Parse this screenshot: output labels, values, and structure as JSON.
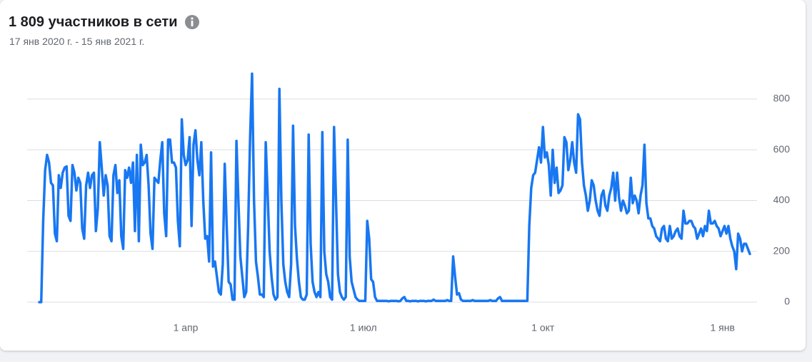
{
  "chart_data": {
    "type": "line",
    "title": "1 809 участников в сети",
    "subtitle": "17 янв 2020 г. - 15 янв 2021 г.",
    "categories": [
      null,
      null,
      null,
      null,
      null,
      null,
      null,
      null,
      null,
      null,
      null,
      null,
      null,
      null,
      null,
      null,
      null,
      null,
      null,
      null,
      null,
      null,
      null,
      null,
      null,
      null,
      null,
      null,
      null,
      null,
      null,
      null,
      null,
      null,
      null,
      null,
      null,
      null,
      null,
      null,
      null,
      null,
      null,
      null,
      null,
      null,
      null,
      null,
      null,
      null,
      null,
      null,
      null,
      null,
      null,
      null,
      null,
      null,
      null,
      null,
      null,
      null,
      null,
      null,
      null,
      null,
      null,
      null,
      null,
      null,
      null,
      null,
      null,
      null,
      null,
      "1 апр",
      null,
      null,
      null,
      null,
      null,
      null,
      null,
      null,
      null,
      null,
      null,
      null,
      null,
      null,
      null,
      null,
      null,
      null,
      null,
      null,
      null,
      null,
      null,
      null,
      null,
      null,
      null,
      null,
      null,
      null,
      null,
      null,
      null,
      null,
      null,
      null,
      null,
      null,
      null,
      null,
      null,
      null,
      null,
      null,
      null,
      null,
      null,
      null,
      null,
      null,
      null,
      null,
      null,
      null,
      null,
      null,
      null,
      null,
      null,
      null,
      null,
      null,
      null,
      null,
      null,
      null,
      null,
      null,
      null,
      null,
      null,
      null,
      null,
      null,
      null,
      null,
      null,
      null,
      null,
      null,
      null,
      null,
      null,
      null,
      null,
      null,
      null,
      null,
      null,
      null,
      "1 июл",
      null,
      null,
      null,
      null,
      null,
      null,
      null,
      null,
      null,
      null,
      null,
      null,
      null,
      null,
      null,
      null,
      null,
      null,
      null,
      null,
      null,
      null,
      null,
      null,
      null,
      null,
      null,
      null,
      null,
      null,
      null,
      null,
      null,
      null,
      null,
      null,
      null,
      null,
      null,
      null,
      null,
      null,
      null,
      null,
      null,
      null,
      null,
      null,
      null,
      null,
      null,
      null,
      null,
      null,
      null,
      null,
      null,
      null,
      null,
      null,
      null,
      null,
      null,
      null,
      null,
      null,
      null,
      null,
      null,
      null,
      null,
      null,
      null,
      null,
      null,
      null,
      null,
      null,
      null,
      null,
      null,
      null,
      null,
      null,
      null,
      null,
      null,
      null,
      null,
      null,
      null,
      "1 окт",
      null,
      null,
      null,
      null,
      null,
      null,
      null,
      null,
      null,
      null,
      null,
      null,
      null,
      null,
      null,
      null,
      null,
      null,
      null,
      null,
      null,
      null,
      null,
      null,
      null,
      null,
      null,
      null,
      null,
      null,
      null,
      null,
      null,
      null,
      null,
      null,
      null,
      null,
      null,
      null,
      null,
      null,
      null,
      null,
      null,
      null,
      null,
      null,
      null,
      null,
      null,
      null,
      null,
      null,
      null,
      null,
      null,
      null,
      null,
      null,
      null,
      null,
      null,
      null,
      null,
      null,
      null,
      null,
      null,
      null,
      null,
      null,
      null,
      null,
      null,
      null,
      null,
      null,
      null,
      null,
      null,
      null,
      null,
      null,
      null,
      null,
      null,
      null,
      null,
      null,
      null,
      "1 янв",
      null,
      null,
      null,
      null,
      null,
      null,
      null,
      null,
      null,
      null,
      null,
      null,
      null,
      null
    ],
    "values": [
      0,
      0,
      320,
      520,
      580,
      550,
      470,
      460,
      270,
      240,
      500,
      450,
      510,
      530,
      535,
      340,
      320,
      540,
      510,
      440,
      490,
      470,
      290,
      250,
      460,
      510,
      450,
      500,
      510,
      280,
      370,
      630,
      530,
      420,
      500,
      460,
      260,
      240,
      500,
      540,
      430,
      480,
      260,
      210,
      520,
      490,
      530,
      470,
      550,
      280,
      580,
      240,
      620,
      540,
      550,
      580,
      460,
      270,
      210,
      490,
      480,
      470,
      560,
      630,
      350,
      260,
      640,
      640,
      550,
      550,
      530,
      320,
      220,
      720,
      580,
      540,
      560,
      650,
      300,
      620,
      677,
      560,
      500,
      630,
      400,
      250,
      260,
      160,
      590,
      140,
      160,
      100,
      40,
      30,
      150,
      545,
      300,
      80,
      70,
      10,
      10,
      635,
      400,
      180,
      100,
      20,
      40,
      300,
      650,
      900,
      400,
      160,
      100,
      30,
      30,
      20,
      630,
      420,
      200,
      100,
      30,
      10,
      20,
      840,
      400,
      150,
      80,
      40,
      20,
      150,
      695,
      300,
      170,
      80,
      20,
      10,
      10,
      30,
      660,
      230,
      80,
      40,
      20,
      40,
      20,
      670,
      200,
      110,
      80,
      20,
      10,
      690,
      400,
      110,
      40,
      20,
      10,
      20,
      640,
      180,
      80,
      50,
      20,
      10,
      5,
      5,
      5,
      5,
      320,
      250,
      90,
      80,
      20,
      5,
      5,
      5,
      5,
      5,
      5,
      3,
      5,
      5,
      5,
      5,
      3,
      5,
      15,
      20,
      5,
      5,
      3,
      5,
      5,
      5,
      3,
      5,
      5,
      5,
      3,
      5,
      5,
      5,
      10,
      5,
      5,
      5,
      5,
      5,
      5,
      8,
      5,
      5,
      180,
      100,
      30,
      35,
      10,
      5,
      5,
      5,
      5,
      5,
      8,
      5,
      5,
      5,
      5,
      5,
      5,
      5,
      5,
      8,
      5,
      5,
      5,
      15,
      20,
      5,
      5,
      5,
      5,
      5,
      5,
      5,
      5,
      5,
      5,
      5,
      5,
      5,
      5,
      300,
      450,
      500,
      510,
      560,
      610,
      550,
      690,
      570,
      590,
      540,
      420,
      600,
      470,
      530,
      430,
      440,
      460,
      650,
      630,
      520,
      560,
      630,
      550,
      510,
      740,
      720,
      550,
      460,
      420,
      360,
      400,
      480,
      460,
      400,
      360,
      340,
      420,
      440,
      380,
      360,
      420,
      450,
      510,
      400,
      510,
      410,
      360,
      400,
      380,
      350,
      360,
      490,
      390,
      420,
      400,
      350,
      420,
      460,
      620,
      390,
      330,
      330,
      300,
      290,
      260,
      250,
      240,
      290,
      300,
      250,
      240,
      300,
      250,
      260,
      280,
      290,
      260,
      250,
      360,
      310,
      310,
      320,
      320,
      300,
      290,
      250,
      270,
      290,
      260,
      300,
      280,
      360,
      310,
      310,
      320,
      300,
      290,
      260,
      280,
      300,
      270,
      300,
      250,
      220,
      200,
      130,
      270,
      250,
      200,
      230,
      230,
      210,
      190
    ],
    "color": "#1877f2",
    "ylim": [
      0,
      900
    ],
    "yticks": [
      0,
      200,
      400,
      600,
      800
    ],
    "grid": true
  }
}
